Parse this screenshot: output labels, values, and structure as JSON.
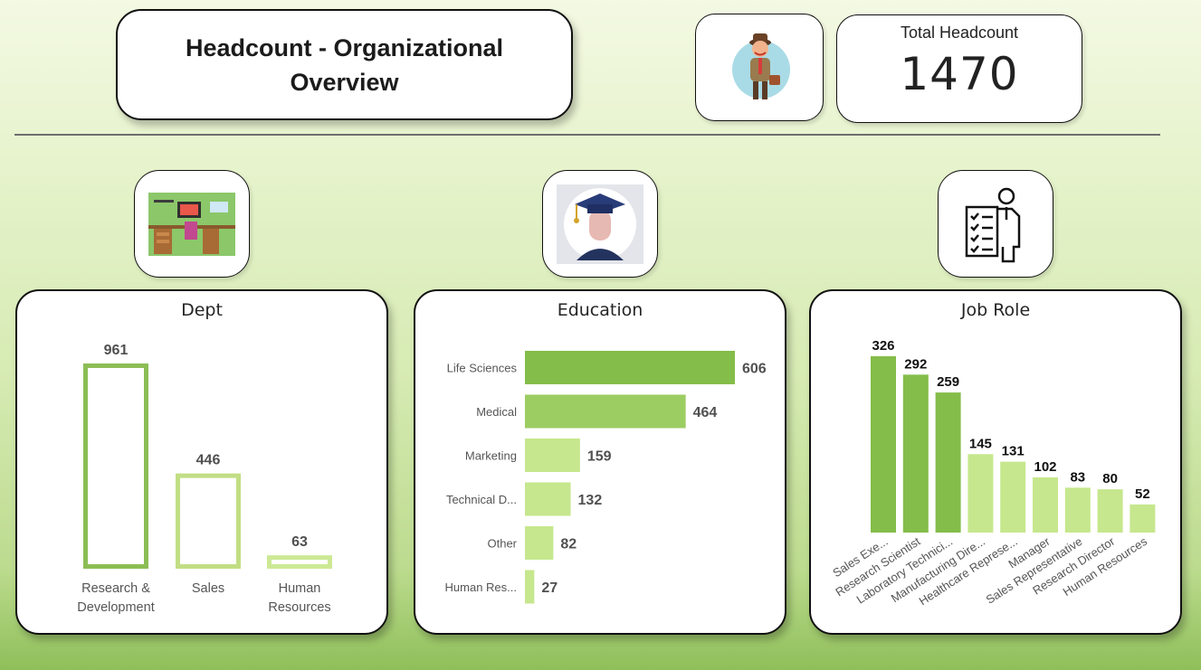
{
  "header": {
    "title": "Headcount - Organizational Overview",
    "kpi_label": "Total Headcount",
    "kpi_value": "1470"
  },
  "icons": {
    "avatar": "businessman-icon",
    "dept": "office-desk-icon",
    "education": "graduate-icon",
    "job_role": "employee-checklist-icon"
  },
  "colors": {
    "dark_green": "#84bd4a",
    "mid_green": "#9ccd62",
    "light_green": "#c6e78d",
    "dept_rd": "#8cbd55",
    "dept_sales": "#c1de84",
    "dept_hr": "#cde995"
  },
  "chart_data": [
    {
      "type": "bar",
      "title": "Dept",
      "categories": [
        "Research & Development",
        "Sales",
        "Human Resources"
      ],
      "category_lines": [
        [
          "Research &",
          "Development"
        ],
        [
          "Sales"
        ],
        [
          "Human",
          "Resources"
        ]
      ],
      "values": [
        961,
        446,
        63
      ],
      "ylim": [
        0,
        961
      ]
    },
    {
      "type": "bar",
      "orientation": "horizontal",
      "title": "Education",
      "categories": [
        "Life Sciences",
        "Medical",
        "Marketing",
        "Technical D...",
        "Other",
        "Human Res..."
      ],
      "values": [
        606,
        464,
        159,
        132,
        82,
        27
      ],
      "xlim": [
        0,
        606
      ]
    },
    {
      "type": "bar",
      "title": "Job Role",
      "categories": [
        "Sales Exe...",
        "Research Scientist",
        "Laboratory Technici...",
        "Manufacturing Dire...",
        "Healthcare Represe...",
        "Manager",
        "Sales Representative",
        "Research Director",
        "Human Resources"
      ],
      "values": [
        326,
        292,
        259,
        145,
        131,
        102,
        83,
        80,
        52
      ],
      "ylim": [
        0,
        326
      ]
    }
  ]
}
